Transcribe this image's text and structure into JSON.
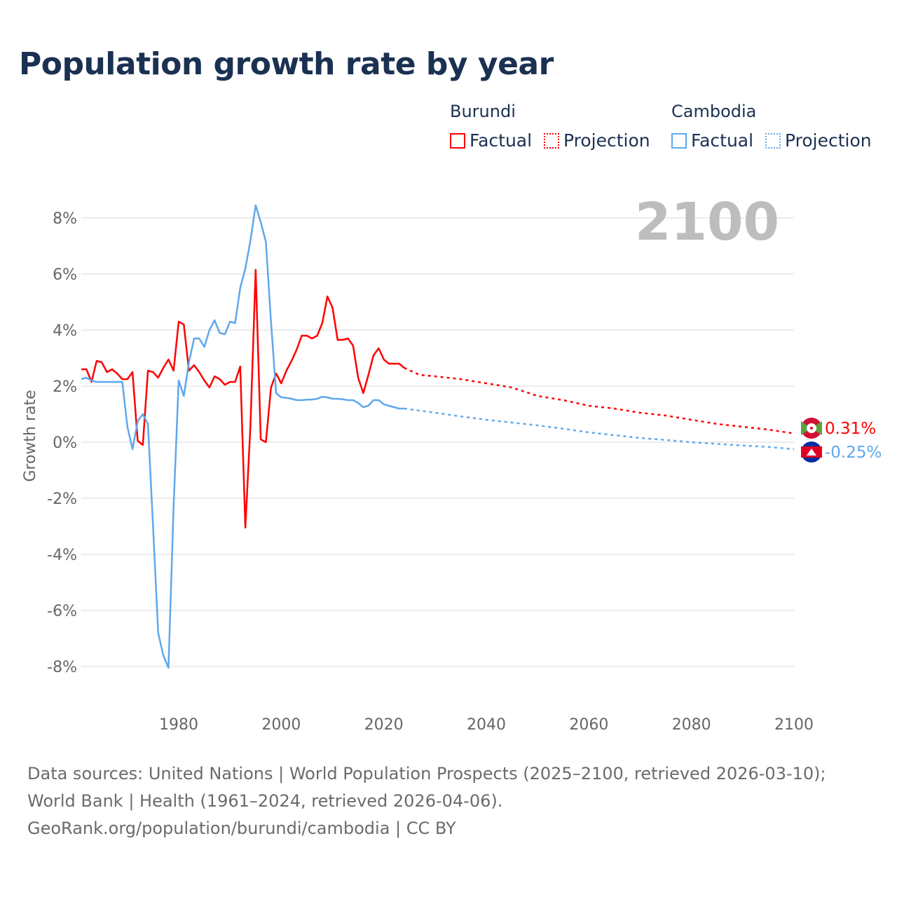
{
  "title": "Population growth rate by year",
  "legend": {
    "groups": [
      {
        "name": "Burundi",
        "color": "#ff0000",
        "factual": "Factual",
        "projection": "Projection"
      },
      {
        "name": "Cambodia",
        "color": "#5ea8ec",
        "factual": "Factual",
        "projection": "Projection"
      }
    ]
  },
  "year_label": "2100",
  "footer": {
    "sources": "Data sources: United Nations | World Population Prospects (2025–2100, retrieved 2026-03-10); World Bank | Health (1961–2024, retrieved 2026-04-06).",
    "credit": "GeoRank.org/population/burundi/cambodia | CC BY"
  },
  "chart_data": {
    "type": "line",
    "title": "Population growth rate by year",
    "xlabel": "",
    "ylabel": "Growth rate",
    "xlim": [
      1961,
      2100
    ],
    "ylim": [
      -9,
      9.5
    ],
    "x_ticks": [
      1980,
      2000,
      2020,
      2040,
      2060,
      2080,
      2100
    ],
    "y_ticks": [
      -8,
      -6,
      -4,
      -2,
      0,
      2,
      4,
      6,
      8
    ],
    "y_tick_labels": [
      "-8%",
      "-6%",
      "-4%",
      "-2%",
      "0%",
      "2%",
      "4%",
      "6%",
      "8%"
    ],
    "grid": true,
    "series": [
      {
        "name": "Burundi",
        "color": "#ff0000",
        "end_label": "0.31%",
        "factual": {
          "x": [
            1961,
            1962,
            1963,
            1964,
            1965,
            1966,
            1967,
            1968,
            1969,
            1970,
            1971,
            1972,
            1973,
            1974,
            1975,
            1976,
            1977,
            1978,
            1979,
            1980,
            1981,
            1982,
            1983,
            1984,
            1985,
            1986,
            1987,
            1988,
            1989,
            1990,
            1991,
            1992,
            1993,
            1994,
            1995,
            1996,
            1997,
            1998,
            1999,
            2000,
            2001,
            2002,
            2003,
            2004,
            2005,
            2006,
            2007,
            2008,
            2009,
            2010,
            2011,
            2012,
            2013,
            2014,
            2015,
            2016,
            2017,
            2018,
            2019,
            2020,
            2021,
            2022,
            2023,
            2024
          ],
          "y": [
            2.6,
            2.6,
            2.15,
            2.9,
            2.85,
            2.5,
            2.6,
            2.45,
            2.25,
            2.25,
            2.5,
            0.05,
            -0.1,
            2.55,
            2.5,
            2.3,
            2.65,
            2.95,
            2.55,
            4.3,
            4.2,
            2.55,
            2.75,
            2.5,
            2.2,
            1.95,
            2.35,
            2.25,
            2.05,
            2.15,
            2.15,
            2.7,
            -3.05,
            0.6,
            6.15,
            0.1,
            0.0,
            1.95,
            2.45,
            2.1,
            2.55,
            2.9,
            3.3,
            3.8,
            3.8,
            3.7,
            3.8,
            4.25,
            5.2,
            4.8,
            3.65,
            3.65,
            3.7,
            3.45,
            2.3,
            1.75,
            2.4,
            3.1,
            3.35,
            2.95,
            2.8,
            2.8,
            2.8,
            2.65
          ]
        },
        "projection": {
          "x": [
            2024,
            2027,
            2030,
            2035,
            2040,
            2045,
            2050,
            2055,
            2060,
            2065,
            2070,
            2075,
            2080,
            2085,
            2090,
            2095,
            2100
          ],
          "y": [
            2.65,
            2.4,
            2.35,
            2.25,
            2.1,
            1.95,
            1.65,
            1.5,
            1.3,
            1.2,
            1.05,
            0.95,
            0.8,
            0.65,
            0.55,
            0.45,
            0.31
          ]
        }
      },
      {
        "name": "Cambodia",
        "color": "#5ea8ec",
        "end_label": "-0.25%",
        "factual": {
          "x": [
            1961,
            1962,
            1963,
            1964,
            1965,
            1966,
            1967,
            1968,
            1969,
            1970,
            1971,
            1972,
            1973,
            1974,
            1975,
            1976,
            1977,
            1978,
            1979,
            1980,
            1981,
            1982,
            1983,
            1984,
            1985,
            1986,
            1987,
            1988,
            1989,
            1990,
            1991,
            1992,
            1993,
            1994,
            1995,
            1996,
            1997,
            1998,
            1999,
            2000,
            2001,
            2002,
            2003,
            2004,
            2005,
            2006,
            2007,
            2008,
            2009,
            2010,
            2011,
            2012,
            2013,
            2014,
            2015,
            2016,
            2017,
            2018,
            2019,
            2020,
            2021,
            2022,
            2023,
            2024
          ],
          "y": [
            2.25,
            2.3,
            2.2,
            2.15,
            2.15,
            2.15,
            2.15,
            2.15,
            2.15,
            0.55,
            -0.25,
            0.75,
            1.0,
            0.65,
            -3.0,
            -6.8,
            -7.6,
            -8.05,
            -2.3,
            2.2,
            1.65,
            2.85,
            3.7,
            3.7,
            3.4,
            4.0,
            4.35,
            3.9,
            3.85,
            4.3,
            4.25,
            5.5,
            6.2,
            7.2,
            8.45,
            7.85,
            7.15,
            4.3,
            1.75,
            1.6,
            1.58,
            1.55,
            1.5,
            1.5,
            1.52,
            1.52,
            1.55,
            1.62,
            1.6,
            1.55,
            1.55,
            1.53,
            1.5,
            1.5,
            1.4,
            1.25,
            1.3,
            1.5,
            1.5,
            1.35,
            1.3,
            1.25,
            1.2,
            1.2
          ]
        },
        "projection": {
          "x": [
            2024,
            2030,
            2035,
            2040,
            2045,
            2050,
            2055,
            2060,
            2065,
            2070,
            2075,
            2080,
            2085,
            2090,
            2095,
            2100
          ],
          "y": [
            1.2,
            1.05,
            0.92,
            0.8,
            0.7,
            0.6,
            0.48,
            0.35,
            0.25,
            0.15,
            0.08,
            0.0,
            -0.06,
            -0.12,
            -0.17,
            -0.25
          ]
        }
      }
    ]
  }
}
